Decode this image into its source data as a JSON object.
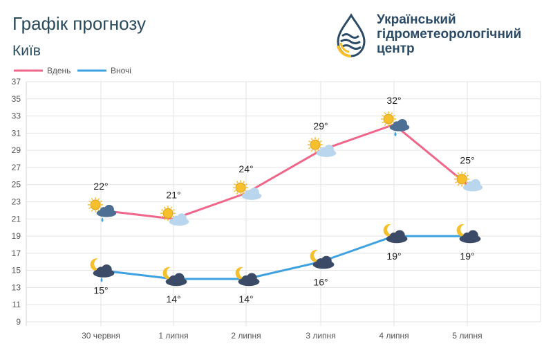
{
  "header": {
    "title": "Графік прогнозу",
    "city": "Київ"
  },
  "org": {
    "line1": "Український",
    "line2": "гідрометеорологічний",
    "line3": "центр"
  },
  "colors": {
    "day": "#f0668a",
    "night": "#3ea1e0",
    "sun": "#f5c02c",
    "cloud": "#b9d6ee",
    "dark_cloud": "#3b4a66",
    "rain": "#3ea1e0"
  },
  "chart_data": {
    "type": "line",
    "categories": [
      "30 червня",
      "1 липня",
      "2 липня",
      "3 липня",
      "4 липня",
      "5 липня"
    ],
    "series": [
      {
        "name": "Вдень",
        "values": [
          22,
          21,
          24,
          29,
          32,
          25
        ],
        "labels": [
          "22°",
          "21°",
          "24°",
          "29°",
          "32°",
          "25°"
        ],
        "icons": [
          "sun-cloud-rain-icon",
          "sun-cloud-icon",
          "sun-cloud-icon",
          "sun-cloud-icon",
          "sun-cloud-rain-icon",
          "sun-cloud-icon"
        ]
      },
      {
        "name": "Вночі",
        "values": [
          15,
          14,
          14,
          16,
          19,
          19
        ],
        "labels": [
          "15°",
          "14°",
          "14°",
          "16°",
          "19°",
          "19°"
        ],
        "icons": [
          "moon-cloud-rain-icon",
          "moon-cloud-icon",
          "moon-cloud-icon",
          "moon-cloud-icon",
          "moon-cloud-icon",
          "moon-cloud-icon"
        ]
      }
    ],
    "yticks": [
      "9",
      "11",
      "13",
      "15",
      "17",
      "19",
      "21",
      "23",
      "25",
      "27",
      "29",
      "31",
      "33",
      "35",
      "37"
    ],
    "ylim": [
      9,
      37
    ],
    "grid": true,
    "legend": "top-left"
  }
}
